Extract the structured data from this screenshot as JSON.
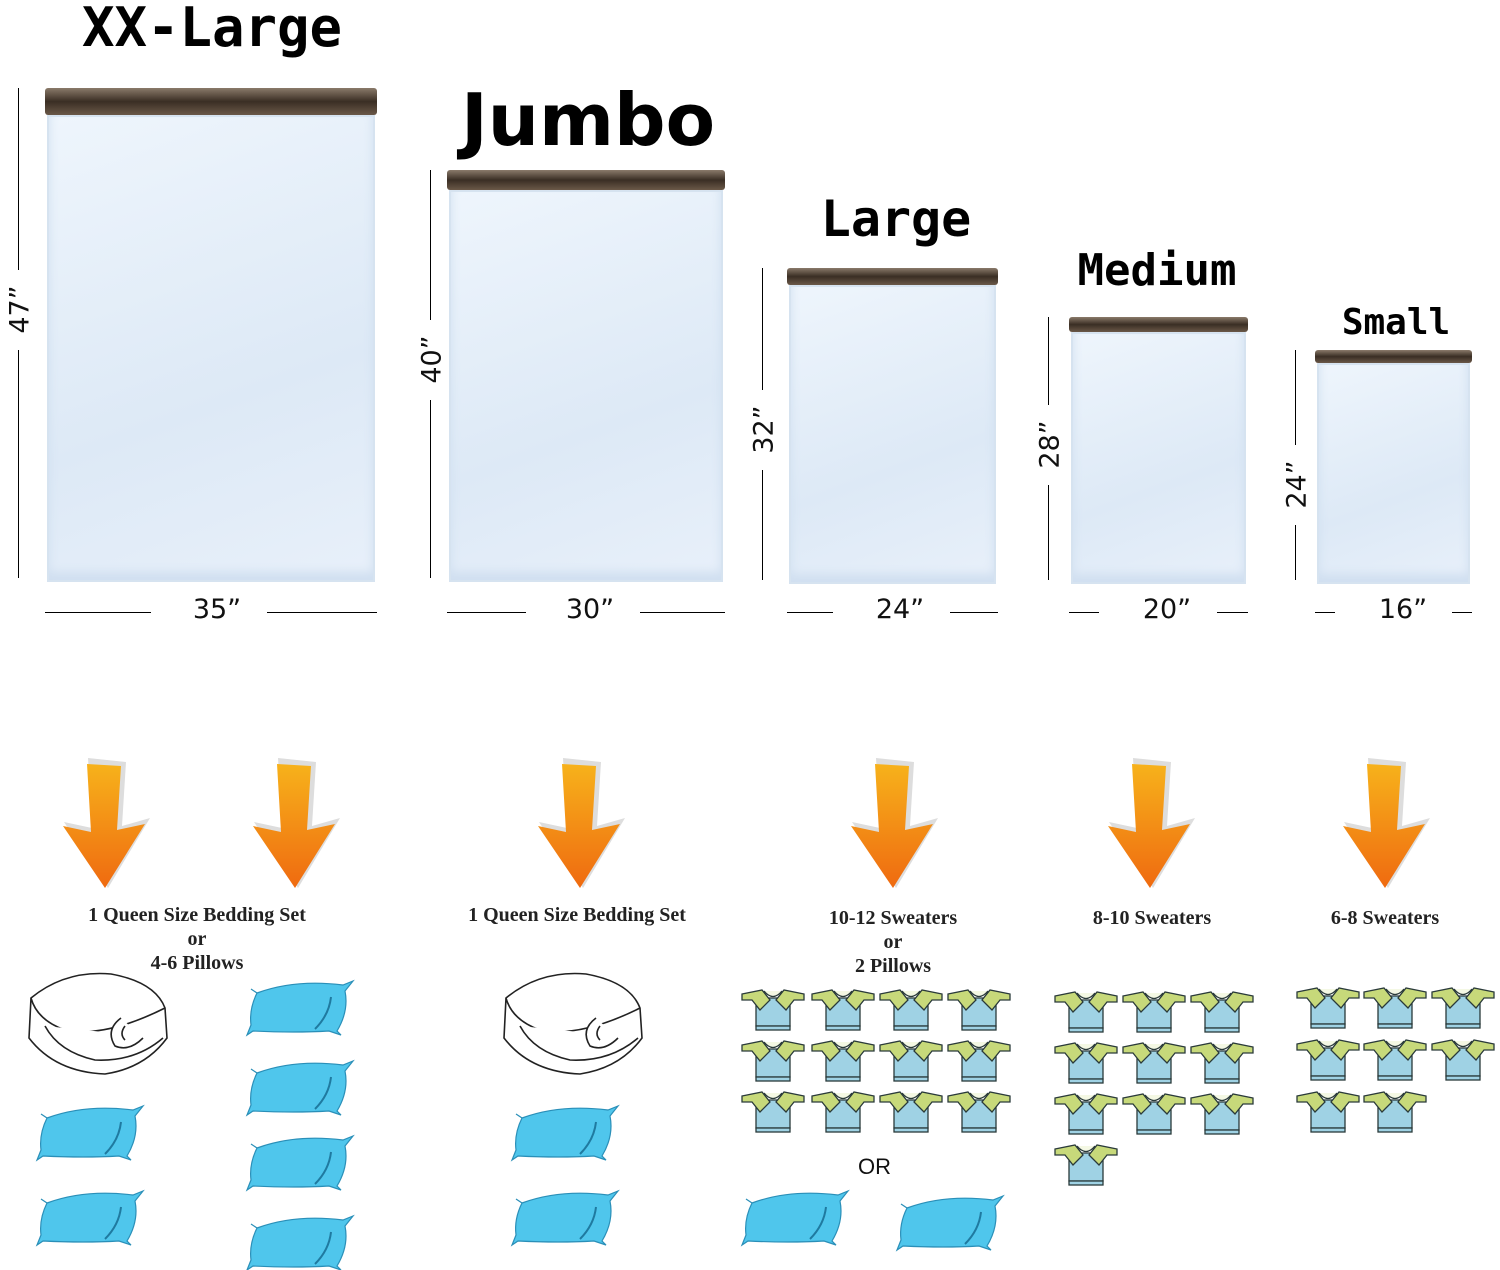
{
  "colors": {
    "arrow_top": "#f7b21b",
    "arrow_bottom": "#ef6a10",
    "pillow": "#4fc6ec",
    "sweater_body": "#9fd2e4",
    "sweater_shoulder": "#c7d97a",
    "zipper": "#3a2e24"
  },
  "bags": [
    {
      "name": "XX-Large",
      "height": "47”",
      "width": "35”",
      "capacity": [
        "1 Queen Size Bedding Set",
        "or",
        "4-6 Pillows"
      ],
      "comforters": 1,
      "pillows": 6,
      "sweaters": 0
    },
    {
      "name": "Jumbo",
      "height": "40”",
      "width": "30”",
      "capacity": [
        "1 Queen Size Bedding Set"
      ],
      "comforters": 1,
      "pillows": 2,
      "sweaters": 0
    },
    {
      "name": "Large",
      "height": "32”",
      "width": "24”",
      "capacity": [
        "10-12 Sweaters",
        "or",
        "2 Pillows"
      ],
      "comforters": 0,
      "pillows": 2,
      "sweaters": 12,
      "separator": "OR"
    },
    {
      "name": "Medium",
      "height": "28”",
      "width": "20”",
      "capacity": [
        "8-10 Sweaters"
      ],
      "comforters": 0,
      "pillows": 0,
      "sweaters": 10
    },
    {
      "name": "Small",
      "height": "24”",
      "width": "16”",
      "capacity": [
        "6-8 Sweaters"
      ],
      "comforters": 0,
      "pillows": 0,
      "sweaters": 8
    }
  ]
}
